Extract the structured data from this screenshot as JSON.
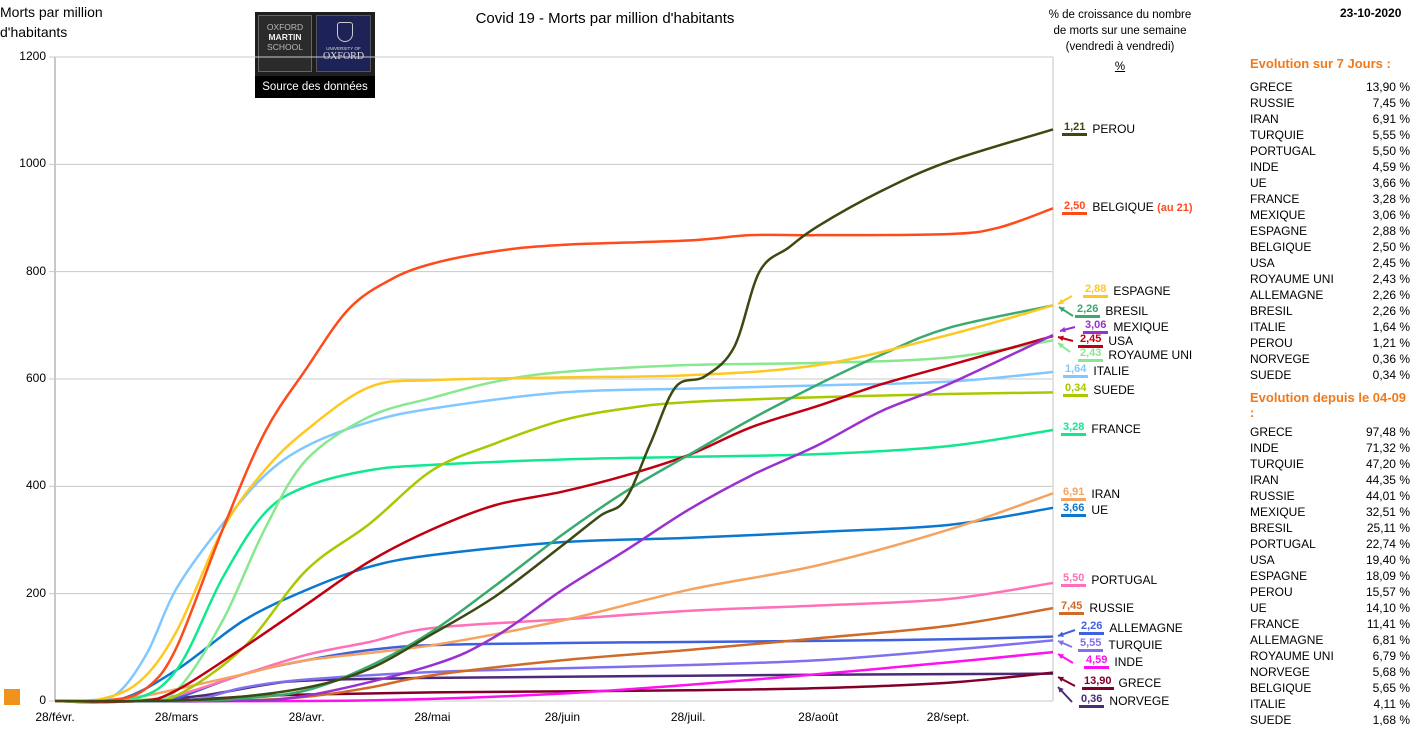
{
  "header": {
    "date": "23-10-2020",
    "logo_text": "Source des données",
    "logo_left": [
      "OXFORD",
      "MARTIN",
      "SCHOOL"
    ],
    "logo_right": [
      "UNIVERSITY OF",
      "OXFORD"
    ]
  },
  "note": {
    "lines": [
      "% de croissance du nombre",
      "de morts sur une semaine",
      "(vendredi à vendredi)"
    ],
    "pct": "%"
  },
  "chart_data": {
    "type": "line",
    "title": "Covid 19 - Morts par million d'habitants",
    "ylabel": "Morts par million d'habitants",
    "xlabel": "",
    "ylim": [
      0,
      1200
    ],
    "yticks": [
      "0",
      "200",
      "400",
      "600",
      "800",
      "1000",
      "1200"
    ],
    "ytick_values": [
      0,
      200,
      400,
      600,
      800,
      1000,
      1200
    ],
    "xlim_days": [
      0,
      238
    ],
    "xticks": [
      "28/févr.",
      "28/mars",
      "28/avr.",
      "28/mai",
      "28/juin",
      "28/juil.",
      "28/août",
      "28/sept."
    ],
    "xtick_days": [
      0,
      29,
      60,
      90,
      121,
      151,
      182,
      213
    ],
    "x_unit": "days since 28/févr. 2020",
    "grid": true,
    "series": [
      {
        "name": "PEROU",
        "growth": "1,21",
        "color": "#3a4a10",
        "points": [
          [
            0,
            0
          ],
          [
            20,
            0
          ],
          [
            40,
            5
          ],
          [
            60,
            25
          ],
          [
            75,
            60
          ],
          [
            90,
            125
          ],
          [
            105,
            195
          ],
          [
            121,
            290
          ],
          [
            130,
            345
          ],
          [
            136,
            375
          ],
          [
            142,
            480
          ],
          [
            148,
            585
          ],
          [
            155,
            605
          ],
          [
            162,
            660
          ],
          [
            168,
            800
          ],
          [
            175,
            845
          ],
          [
            182,
            885
          ],
          [
            197,
            950
          ],
          [
            213,
            1005
          ],
          [
            238,
            1065
          ]
        ]
      },
      {
        "name": "BELGIQUE",
        "extra": "(au 21)",
        "growth": "2,50",
        "color": "#ff4a1a",
        "points": [
          [
            0,
            0
          ],
          [
            14,
            2
          ],
          [
            22,
            25
          ],
          [
            29,
            100
          ],
          [
            40,
            320
          ],
          [
            50,
            500
          ],
          [
            60,
            620
          ],
          [
            70,
            730
          ],
          [
            80,
            785
          ],
          [
            90,
            815
          ],
          [
            105,
            838
          ],
          [
            121,
            850
          ],
          [
            151,
            858
          ],
          [
            166,
            868
          ],
          [
            182,
            868
          ],
          [
            213,
            870
          ],
          [
            225,
            882
          ],
          [
            238,
            918
          ]
        ]
      },
      {
        "name": "ESPAGNE",
        "growth": "2,88",
        "color": "#ffc820",
        "points": [
          [
            0,
            0
          ],
          [
            10,
            2
          ],
          [
            20,
            35
          ],
          [
            29,
            130
          ],
          [
            40,
            320
          ],
          [
            50,
            430
          ],
          [
            60,
            505
          ],
          [
            75,
            585
          ],
          [
            90,
            598
          ],
          [
            121,
            603
          ],
          [
            151,
            607
          ],
          [
            182,
            626
          ],
          [
            213,
            682
          ],
          [
            238,
            737
          ]
        ]
      },
      {
        "name": "BRESIL",
        "growth": "2,26",
        "color": "#3aaa70",
        "points": [
          [
            0,
            0
          ],
          [
            30,
            0
          ],
          [
            45,
            5
          ],
          [
            60,
            20
          ],
          [
            75,
            65
          ],
          [
            90,
            130
          ],
          [
            105,
            215
          ],
          [
            121,
            310
          ],
          [
            136,
            390
          ],
          [
            151,
            458
          ],
          [
            166,
            525
          ],
          [
            182,
            590
          ],
          [
            197,
            645
          ],
          [
            213,
            695
          ],
          [
            238,
            737
          ]
        ]
      },
      {
        "name": "MEXIQUE",
        "growth": "3,06",
        "color": "#9a30d0",
        "points": [
          [
            0,
            0
          ],
          [
            40,
            0
          ],
          [
            60,
            10
          ],
          [
            90,
            67
          ],
          [
            105,
            120
          ],
          [
            121,
            207
          ],
          [
            136,
            280
          ],
          [
            151,
            356
          ],
          [
            166,
            420
          ],
          [
            182,
            477
          ],
          [
            197,
            540
          ],
          [
            213,
            590
          ],
          [
            238,
            682
          ]
        ]
      },
      {
        "name": "USA",
        "growth": "2,45",
        "color": "#c00010",
        "points": [
          [
            0,
            0
          ],
          [
            20,
            0
          ],
          [
            29,
            20
          ],
          [
            45,
            100
          ],
          [
            60,
            180
          ],
          [
            75,
            260
          ],
          [
            90,
            320
          ],
          [
            105,
            365
          ],
          [
            121,
            390
          ],
          [
            136,
            420
          ],
          [
            151,
            458
          ],
          [
            166,
            510
          ],
          [
            182,
            550
          ],
          [
            197,
            590
          ],
          [
            213,
            625
          ],
          [
            238,
            680
          ]
        ]
      },
      {
        "name": "ROYAUME UNI",
        "growth": "2,43",
        "color": "#88e890",
        "points": [
          [
            0,
            0
          ],
          [
            20,
            2
          ],
          [
            29,
            20
          ],
          [
            40,
            150
          ],
          [
            50,
            320
          ],
          [
            60,
            450
          ],
          [
            75,
            530
          ],
          [
            90,
            565
          ],
          [
            105,
            595
          ],
          [
            121,
            613
          ],
          [
            151,
            626
          ],
          [
            182,
            630
          ],
          [
            213,
            640
          ],
          [
            238,
            672
          ]
        ]
      },
      {
        "name": "ITALIE",
        "growth": "1,64",
        "color": "#80c8ff",
        "points": [
          [
            0,
            0
          ],
          [
            8,
            1
          ],
          [
            15,
            15
          ],
          [
            22,
            90
          ],
          [
            29,
            210
          ],
          [
            40,
            330
          ],
          [
            50,
            420
          ],
          [
            60,
            475
          ],
          [
            75,
            520
          ],
          [
            90,
            545
          ],
          [
            121,
            575
          ],
          [
            151,
            582
          ],
          [
            182,
            588
          ],
          [
            213,
            595
          ],
          [
            238,
            613
          ]
        ]
      },
      {
        "name": "SUEDE",
        "growth": "0,34",
        "color": "#a8c800",
        "points": [
          [
            0,
            0
          ],
          [
            20,
            0
          ],
          [
            29,
            10
          ],
          [
            45,
            100
          ],
          [
            60,
            244
          ],
          [
            75,
            330
          ],
          [
            90,
            430
          ],
          [
            105,
            480
          ],
          [
            121,
            523
          ],
          [
            136,
            545
          ],
          [
            151,
            557
          ],
          [
            182,
            566
          ],
          [
            213,
            572
          ],
          [
            238,
            575
          ]
        ]
      },
      {
        "name": "FRANCE",
        "growth": "3,28",
        "color": "#10e890",
        "points": [
          [
            0,
            0
          ],
          [
            18,
            2
          ],
          [
            29,
            58
          ],
          [
            40,
            230
          ],
          [
            50,
            350
          ],
          [
            60,
            400
          ],
          [
            75,
            430
          ],
          [
            90,
            440
          ],
          [
            121,
            450
          ],
          [
            151,
            455
          ],
          [
            182,
            460
          ],
          [
            213,
            475
          ],
          [
            238,
            505
          ]
        ]
      },
      {
        "name": "IRAN",
        "growth": "6,91",
        "color": "#f4a460",
        "points": [
          [
            0,
            0
          ],
          [
            10,
            1
          ],
          [
            20,
            8
          ],
          [
            29,
            22
          ],
          [
            45,
            50
          ],
          [
            60,
            76
          ],
          [
            90,
            104
          ],
          [
            121,
            150
          ],
          [
            151,
            207
          ],
          [
            182,
            253
          ],
          [
            213,
            319
          ],
          [
            238,
            387
          ]
        ]
      },
      {
        "name": "UE",
        "growth": "3,66",
        "color": "#0a78d0",
        "points": [
          [
            0,
            0
          ],
          [
            15,
            2
          ],
          [
            29,
            58
          ],
          [
            45,
            150
          ],
          [
            60,
            207
          ],
          [
            75,
            250
          ],
          [
            90,
            272
          ],
          [
            121,
            296
          ],
          [
            151,
            304
          ],
          [
            182,
            315
          ],
          [
            213,
            328
          ],
          [
            238,
            360
          ]
        ]
      },
      {
        "name": "PORTUGAL",
        "growth": "5,50",
        "color": "#ff70b8",
        "points": [
          [
            0,
            0
          ],
          [
            20,
            0
          ],
          [
            29,
            10
          ],
          [
            45,
            50
          ],
          [
            60,
            86
          ],
          [
            75,
            110
          ],
          [
            90,
            136
          ],
          [
            121,
            152
          ],
          [
            151,
            168
          ],
          [
            182,
            178
          ],
          [
            213,
            190
          ],
          [
            238,
            220
          ]
        ]
      },
      {
        "name": "RUSSIE",
        "growth": "7,45",
        "color": "#d06a28",
        "points": [
          [
            0,
            0
          ],
          [
            40,
            0
          ],
          [
            60,
            8
          ],
          [
            75,
            25
          ],
          [
            90,
            48
          ],
          [
            121,
            76
          ],
          [
            151,
            95
          ],
          [
            182,
            117
          ],
          [
            213,
            140
          ],
          [
            238,
            173
          ]
        ]
      },
      {
        "name": "ALLEMAGNE",
        "growth": "2,26",
        "color": "#4060e0",
        "points": [
          [
            0,
            0
          ],
          [
            25,
            0
          ],
          [
            29,
            5
          ],
          [
            45,
            50
          ],
          [
            60,
            76
          ],
          [
            75,
            95
          ],
          [
            90,
            104
          ],
          [
            121,
            108
          ],
          [
            151,
            110
          ],
          [
            182,
            112
          ],
          [
            213,
            115
          ],
          [
            238,
            120
          ]
        ]
      },
      {
        "name": "TURQUIE",
        "growth": "5,55",
        "color": "#8070f0",
        "points": [
          [
            0,
            0
          ],
          [
            25,
            0
          ],
          [
            35,
            5
          ],
          [
            45,
            25
          ],
          [
            60,
            40
          ],
          [
            90,
            54
          ],
          [
            121,
            61
          ],
          [
            151,
            67
          ],
          [
            182,
            76
          ],
          [
            213,
            95
          ],
          [
            238,
            113
          ]
        ]
      },
      {
        "name": "INDE",
        "growth": "4,59",
        "color": "#ff10f0",
        "points": [
          [
            0,
            0
          ],
          [
            60,
            0
          ],
          [
            90,
            4
          ],
          [
            121,
            14
          ],
          [
            151,
            30
          ],
          [
            182,
            50
          ],
          [
            213,
            72
          ],
          [
            238,
            91
          ]
        ]
      },
      {
        "name": "GRECE",
        "growth": "13,90",
        "color": "#800028",
        "points": [
          [
            0,
            0
          ],
          [
            25,
            0
          ],
          [
            45,
            8
          ],
          [
            60,
            12
          ],
          [
            90,
            16
          ],
          [
            151,
            20
          ],
          [
            182,
            24
          ],
          [
            213,
            34
          ],
          [
            238,
            53
          ]
        ]
      },
      {
        "name": "NORVEGE",
        "growth": "0,36",
        "color": "#4b2a78",
        "points": [
          [
            0,
            0
          ],
          [
            20,
            0
          ],
          [
            35,
            10
          ],
          [
            50,
            30
          ],
          [
            60,
            38
          ],
          [
            90,
            43
          ],
          [
            151,
            47
          ],
          [
            182,
            49
          ],
          [
            213,
            50
          ],
          [
            238,
            51
          ]
        ]
      }
    ]
  },
  "table7": {
    "title": "Evolution sur 7 Jours :",
    "rows": [
      [
        "GRECE",
        "13,90 %"
      ],
      [
        "RUSSIE",
        "7,45 %"
      ],
      [
        "IRAN",
        "6,91 %"
      ],
      [
        "TURQUIE",
        "5,55 %"
      ],
      [
        "PORTUGAL",
        "5,50 %"
      ],
      [
        "INDE",
        "4,59 %"
      ],
      [
        "UE",
        "3,66 %"
      ],
      [
        "FRANCE",
        "3,28 %"
      ],
      [
        "MEXIQUE",
        "3,06 %"
      ],
      [
        "ESPAGNE",
        "2,88 %"
      ],
      [
        "BELGIQUE",
        "2,50 %"
      ],
      [
        "USA",
        "2,45 %"
      ],
      [
        "ROYAUME UNI",
        "2,43 %"
      ],
      [
        "ALLEMAGNE",
        "2,26 %"
      ],
      [
        "BRESIL",
        "2,26 %"
      ],
      [
        "ITALIE",
        "1,64 %"
      ],
      [
        "PEROU",
        "1,21 %"
      ],
      [
        "NORVEGE",
        "0,36 %"
      ],
      [
        "SUEDE",
        "0,34 %"
      ]
    ]
  },
  "tableSince": {
    "title": "Evolution depuis le 04-09 :",
    "rows": [
      [
        "GRECE",
        "97,48 %"
      ],
      [
        "INDE",
        "71,32 %"
      ],
      [
        "TURQUIE",
        "47,20 %"
      ],
      [
        "IRAN",
        "44,35 %"
      ],
      [
        "RUSSIE",
        "44,01 %"
      ],
      [
        "MEXIQUE",
        "32,51 %"
      ],
      [
        "BRESIL",
        "25,11 %"
      ],
      [
        "PORTUGAL",
        "22,74 %"
      ],
      [
        "USA",
        "19,40 %"
      ],
      [
        "ESPAGNE",
        "18,09 %"
      ],
      [
        "PEROU",
        "15,57 %"
      ],
      [
        "UE",
        "14,10 %"
      ],
      [
        "FRANCE",
        "11,41 %"
      ],
      [
        "ALLEMAGNE",
        "6,81 %"
      ],
      [
        "ROYAUME UNI",
        "6,79 %"
      ],
      [
        "NORVEGE",
        "5,68 %"
      ],
      [
        "BELGIQUE",
        "5,65 %"
      ],
      [
        "ITALIE",
        "4,11 %"
      ],
      [
        "SUEDE",
        "1,68 %"
      ]
    ]
  }
}
